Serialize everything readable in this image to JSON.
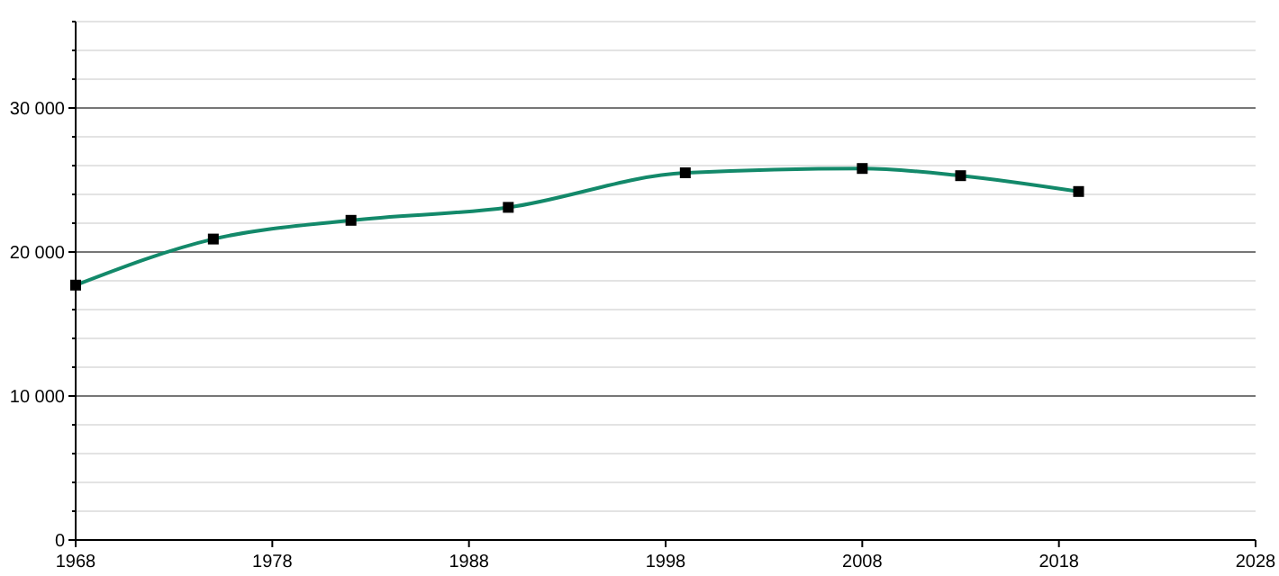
{
  "chart_data": {
    "type": "line",
    "x": [
      1968,
      1975,
      1982,
      1990,
      1999,
      2008,
      2013,
      2019
    ],
    "series": [
      {
        "color": "#13896a",
        "values": [
          17700,
          20900,
          22200,
          23100,
          25500,
          25800,
          25300,
          24200
        ]
      }
    ],
    "xlim": [
      1968,
      2028
    ],
    "xticks": [
      1968,
      1978,
      1988,
      1998,
      2008,
      2018,
      2028
    ],
    "ylim": [
      0,
      36000
    ],
    "yticks": [
      {
        "value": 0,
        "label": "0"
      },
      {
        "value": 2000,
        "label": null
      },
      {
        "value": 4000,
        "label": null
      },
      {
        "value": 6000,
        "label": null
      },
      {
        "value": 8000,
        "label": null
      },
      {
        "value": 10000,
        "label": "10 000"
      },
      {
        "value": 12000,
        "label": null
      },
      {
        "value": 14000,
        "label": null
      },
      {
        "value": 16000,
        "label": null
      },
      {
        "value": 18000,
        "label": null
      },
      {
        "value": 20000,
        "label": "20 000"
      },
      {
        "value": 22000,
        "label": null
      },
      {
        "value": 24000,
        "label": null
      },
      {
        "value": 26000,
        "label": null
      },
      {
        "value": 28000,
        "label": null
      },
      {
        "value": 30000,
        "label": "30 000"
      },
      {
        "value": 32000,
        "label": null
      },
      {
        "value": 34000,
        "label": null
      },
      {
        "value": 36000,
        "label": null
      }
    ],
    "grid": "y",
    "marker": "square",
    "line_style": "solid"
  }
}
